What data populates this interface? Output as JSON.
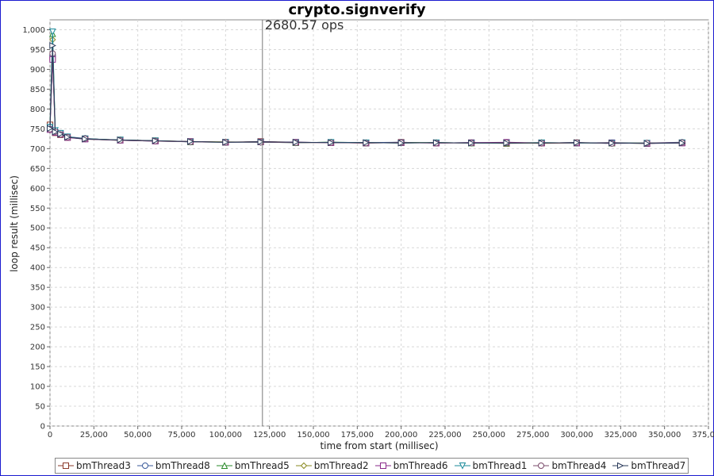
{
  "chart_data": {
    "type": "line",
    "title": "crypto.signverify",
    "xlabel": "time from start (millisec)",
    "ylabel": "loop result (millisec)",
    "xlim": [
      0,
      375000
    ],
    "ylim": [
      0,
      1025
    ],
    "grid": true,
    "legend_position": "bottom",
    "x_ticks": [
      0,
      25000,
      50000,
      75000,
      100000,
      125000,
      150000,
      175000,
      200000,
      225000,
      250000,
      275000,
      300000,
      325000,
      350000,
      375000
    ],
    "x_tick_labels": [
      "0",
      "25,000",
      "50,000",
      "75,000",
      "100,000",
      "125,000",
      "150,000",
      "175,000",
      "200,000",
      "225,000",
      "250,000",
      "275,000",
      "300,000",
      "325,000",
      "350,000",
      "375,000"
    ],
    "y_ticks": [
      0,
      50,
      100,
      150,
      200,
      250,
      300,
      350,
      400,
      450,
      500,
      550,
      600,
      650,
      700,
      750,
      800,
      850,
      900,
      950,
      1000
    ],
    "y_tick_labels": [
      "0",
      "50",
      "100",
      "150",
      "200",
      "250",
      "300",
      "350",
      "400",
      "450",
      "500",
      "550",
      "600",
      "650",
      "700",
      "750",
      "800",
      "850",
      "900",
      "950",
      "1,000"
    ],
    "marker_line": {
      "x": 121000,
      "label": "2680.57 ops"
    },
    "series": [
      {
        "name": "bmThread3",
        "marker": "square",
        "color": "#8b3a2a",
        "x": [
          0,
          1500,
          3000,
          6000,
          10000,
          20000,
          40000,
          60000,
          80000,
          100000,
          120000,
          140000,
          160000,
          180000,
          200000,
          220000,
          240000,
          260000,
          280000,
          300000,
          320000,
          340000,
          360000
        ],
        "y": [
          760,
          930,
          740,
          735,
          728,
          725,
          722,
          720,
          718,
          716,
          718,
          716,
          715,
          714,
          716,
          714,
          715,
          713,
          714,
          715,
          714,
          713,
          715
        ]
      },
      {
        "name": "bmThread8",
        "marker": "circle",
        "color": "#3a5a9a",
        "x": [
          0,
          1500,
          3000,
          6000,
          10000,
          20000,
          40000,
          60000,
          80000,
          100000,
          120000,
          140000,
          160000,
          180000,
          200000,
          220000,
          240000,
          260000,
          280000,
          300000,
          320000,
          340000,
          360000
        ],
        "y": [
          755,
          935,
          745,
          738,
          730,
          726,
          721,
          719,
          717,
          716,
          717,
          716,
          715,
          715,
          716,
          714,
          715,
          714,
          714,
          715,
          713,
          714,
          716
        ]
      },
      {
        "name": "bmThread5",
        "marker": "triangle-up",
        "color": "#2a8a2a",
        "x": [
          0,
          1500,
          3000,
          6000,
          10000,
          20000,
          40000,
          60000,
          80000,
          100000,
          120000,
          140000,
          160000,
          180000,
          200000,
          220000,
          240000,
          260000,
          280000,
          300000,
          320000,
          340000,
          360000
        ],
        "y": [
          750,
          990,
          742,
          736,
          729,
          725,
          722,
          720,
          717,
          716,
          717,
          715,
          716,
          714,
          715,
          715,
          714,
          714,
          715,
          714,
          714,
          713,
          715
        ]
      },
      {
        "name": "bmThread2",
        "marker": "diamond",
        "color": "#8a8a20",
        "x": [
          0,
          1500,
          3000,
          6000,
          10000,
          20000,
          40000,
          60000,
          80000,
          100000,
          120000,
          140000,
          160000,
          180000,
          200000,
          220000,
          240000,
          260000,
          280000,
          300000,
          320000,
          340000,
          360000
        ],
        "y": [
          752,
          975,
          744,
          737,
          729,
          724,
          721,
          720,
          718,
          717,
          716,
          715,
          716,
          715,
          714,
          715,
          714,
          715,
          713,
          714,
          715,
          714,
          714
        ]
      },
      {
        "name": "bmThread6",
        "marker": "square-h",
        "color": "#8a2a8a",
        "x": [
          0,
          1500,
          3000,
          6000,
          10000,
          20000,
          40000,
          60000,
          80000,
          100000,
          120000,
          140000,
          160000,
          180000,
          200000,
          220000,
          240000,
          260000,
          280000,
          300000,
          320000,
          340000,
          360000
        ],
        "y": [
          748,
          925,
          741,
          736,
          728,
          724,
          721,
          719,
          718,
          716,
          717,
          716,
          715,
          714,
          715,
          714,
          715,
          716,
          714,
          714,
          715,
          713,
          714
        ]
      },
      {
        "name": "bmThread1",
        "marker": "triangle-down",
        "color": "#1a8a9a",
        "x": [
          0,
          1500,
          3000,
          6000,
          10000,
          20000,
          40000,
          60000,
          80000,
          100000,
          120000,
          140000,
          160000,
          180000,
          200000,
          220000,
          240000,
          260000,
          280000,
          300000,
          320000,
          340000,
          360000
        ],
        "y": [
          754,
          995,
          746,
          739,
          730,
          725,
          722,
          720,
          717,
          716,
          716,
          715,
          716,
          715,
          714,
          715,
          714,
          714,
          715,
          714,
          714,
          714,
          715
        ]
      },
      {
        "name": "bmThread4",
        "marker": "circle-h",
        "color": "#7a4a6a",
        "x": [
          0,
          1500,
          3000,
          6000,
          10000,
          20000,
          40000,
          60000,
          80000,
          100000,
          120000,
          140000,
          160000,
          180000,
          200000,
          220000,
          240000,
          260000,
          280000,
          300000,
          320000,
          340000,
          360000
        ],
        "y": [
          749,
          940,
          743,
          736,
          729,
          725,
          721,
          719,
          717,
          716,
          716,
          715,
          715,
          714,
          715,
          714,
          714,
          715,
          714,
          715,
          713,
          714,
          715
        ]
      },
      {
        "name": "bmThread7",
        "marker": "triangle-right",
        "color": "#2a3a5a",
        "x": [
          0,
          1500,
          3000,
          6000,
          10000,
          20000,
          40000,
          60000,
          80000,
          100000,
          120000,
          140000,
          160000,
          180000,
          200000,
          220000,
          240000,
          260000,
          280000,
          300000,
          320000,
          340000,
          360000
        ],
        "y": [
          751,
          960,
          742,
          737,
          729,
          724,
          722,
          720,
          718,
          716,
          717,
          716,
          715,
          715,
          714,
          715,
          714,
          714,
          714,
          715,
          714,
          713,
          714
        ]
      }
    ]
  }
}
